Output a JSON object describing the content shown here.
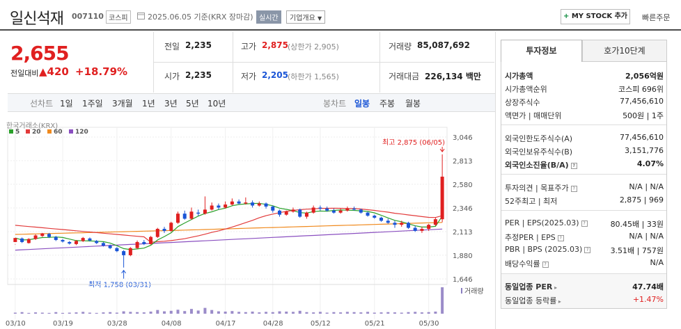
{
  "header": {
    "company_name": "일신석재",
    "code": "007110",
    "market": "코스피",
    "date_text": "2025.06.05 기준(KRX 장마감)",
    "realtime_label": "실시간",
    "company_info_label": "기업개요",
    "mystock_label": "MY STOCK 추가",
    "quick_order_label": "빠른주문"
  },
  "quote": {
    "price": "2,655",
    "change_label": "전일대비",
    "change": "▲420",
    "change_pct": "+18.79%",
    "prev_close_label": "전일",
    "prev_close": "2,235",
    "high_label": "고가",
    "high": "2,875",
    "upper_limit": "(상한가 2,905)",
    "volume_label": "거래량",
    "volume": "85,087,692",
    "open_label": "시가",
    "open": "2,235",
    "low_label": "저가",
    "low": "2,205",
    "lower_limit": "(하한가 1,565)",
    "value_label": "거래대금",
    "value": "226,134 백만"
  },
  "period_bar": {
    "line_label": "선차트",
    "periods": [
      "1일",
      "1주일",
      "3개월",
      "1년",
      "3년",
      "5년",
      "10년"
    ],
    "candle_label": "봉차트",
    "candle_types": [
      "일봉",
      "주봉",
      "월봉"
    ],
    "selected_candle": "일봉"
  },
  "right_panel": {
    "tab_info": "투자정보",
    "tab_orderbook": "호가10단계",
    "rows": [
      {
        "k": "시가총액",
        "v": "2,056억원",
        "bold": true
      },
      {
        "k": "시가총액순위",
        "v": "코스피 696위"
      },
      {
        "k": "상장주식수",
        "v": "77,456,610"
      },
      {
        "k": "액면가 | 매매단위",
        "v": "500원 | 1주"
      },
      {
        "k": "외국인한도주식수(A)",
        "v": "77,456,610"
      },
      {
        "k": "외국인보유주식수(B)",
        "v": "3,151,776"
      },
      {
        "k": "외국인소진율(B/A)",
        "v": "4.07%",
        "bold": true
      },
      {
        "k": "투자의견 | 목표주가",
        "v": "N/A | N/A"
      },
      {
        "k": "52주최고 | 최저",
        "v": "2,875 | 969"
      },
      {
        "k": "PER | EPS(2025.03)",
        "v": "80.45배 | 33원"
      },
      {
        "k": "추정PER | EPS",
        "v": "N/A | N/A"
      },
      {
        "k": "PBR | BPS (2025.03)",
        "v": "3.51배 | 757원"
      },
      {
        "k": "배당수익률",
        "v": "N/A"
      },
      {
        "k": "동일업종 PER",
        "v": "47.74배",
        "bold": true
      },
      {
        "k": "동일업종 등락률",
        "v": "+1.47%",
        "red": true
      }
    ]
  },
  "chart_data": {
    "type": "candlestick",
    "source_label": "한국거래소(KRX)",
    "legend": [
      {
        "name": "5",
        "color": "#2aa02a"
      },
      {
        "name": "20",
        "color": "#e23a3a"
      },
      {
        "name": "60",
        "color": "#f08a1e"
      },
      {
        "name": "120",
        "color": "#8a4fc0"
      }
    ],
    "y_ticks": [
      "3,046",
      "2,813",
      "2,580",
      "2,346",
      "2,113",
      "1,880",
      "1,646"
    ],
    "y_range": [
      1646,
      3046
    ],
    "x_ticks": [
      "03/10",
      "03/19",
      "03/28",
      "04/08",
      "04/17",
      "04/28",
      "05/12",
      "05/21",
      "05/30"
    ],
    "high_annotation": "최고 2,875 (06/05)",
    "low_annotation": "최저 1,758 (03/31)",
    "volume_label": "거래량",
    "up_color": "#e02020",
    "down_color": "#1a55d6",
    "candles": [
      [
        2010,
        2050,
        1990,
        1985
      ],
      [
        2045,
        2010,
        2055,
        2000
      ],
      [
        2000,
        2040,
        2048,
        1995
      ],
      [
        2040,
        2075,
        2085,
        2030
      ],
      [
        2070,
        2095,
        2100,
        2060
      ],
      [
        2090,
        2060,
        2100,
        2050
      ],
      [
        2060,
        2030,
        2070,
        2020
      ],
      [
        2030,
        2015,
        2040,
        2005
      ],
      [
        2010,
        1995,
        2020,
        1985
      ],
      [
        1990,
        2020,
        2030,
        1980
      ],
      [
        2020,
        2050,
        2060,
        2010
      ],
      [
        2045,
        2025,
        2055,
        2015
      ],
      [
        2020,
        2000,
        2030,
        1990
      ],
      [
        2000,
        1975,
        2010,
        1965
      ],
      [
        1975,
        1950,
        1985,
        1940
      ],
      [
        1950,
        1920,
        1960,
        1910
      ],
      [
        1920,
        1880,
        1930,
        1758
      ],
      [
        1880,
        1950,
        1960,
        1870
      ],
      [
        1950,
        2010,
        2025,
        1940
      ],
      [
        2010,
        1990,
        2030,
        1980
      ],
      [
        1990,
        2060,
        2070,
        1985
      ],
      [
        2060,
        2140,
        2150,
        2050
      ],
      [
        2140,
        2120,
        2160,
        2100
      ],
      [
        2120,
        2200,
        2210,
        2110
      ],
      [
        2200,
        2290,
        2310,
        2190
      ],
      [
        2290,
        2240,
        2320,
        2230
      ],
      [
        2240,
        2310,
        2350,
        2230
      ],
      [
        2300,
        2290,
        2330,
        2270
      ],
      [
        2290,
        2330,
        2460,
        2280
      ],
      [
        2330,
        2370,
        2400,
        2320
      ],
      [
        2370,
        2350,
        2390,
        2330
      ],
      [
        2350,
        2380,
        2410,
        2340
      ],
      [
        2380,
        2410,
        2440,
        2370
      ],
      [
        2410,
        2390,
        2430,
        2380
      ],
      [
        2390,
        2400,
        2450,
        2380
      ],
      [
        2400,
        2370,
        2420,
        2350
      ],
      [
        2370,
        2390,
        2410,
        2360
      ],
      [
        2390,
        2360,
        2400,
        2340
      ],
      [
        2360,
        2320,
        2370,
        2300
      ],
      [
        2320,
        2280,
        2330,
        2260
      ],
      [
        2280,
        2310,
        2320,
        2270
      ],
      [
        2310,
        2330,
        2350,
        2300
      ],
      [
        2330,
        2260,
        2340,
        2250
      ],
      [
        2260,
        2300,
        2310,
        2240
      ],
      [
        2300,
        2350,
        2370,
        2290
      ],
      [
        2350,
        2340,
        2370,
        2320
      ],
      [
        2340,
        2320,
        2360,
        2310
      ],
      [
        2320,
        2300,
        2340,
        2290
      ],
      [
        2300,
        2320,
        2340,
        2290
      ],
      [
        2320,
        2340,
        2360,
        2310
      ],
      [
        2340,
        2330,
        2360,
        2320
      ],
      [
        2330,
        2300,
        2340,
        2290
      ],
      [
        2300,
        2270,
        2310,
        2260
      ],
      [
        2270,
        2250,
        2280,
        2240
      ],
      [
        2250,
        2220,
        2260,
        2210
      ],
      [
        2220,
        2200,
        2240,
        2190
      ],
      [
        2200,
        2180,
        2220,
        2150
      ],
      [
        2180,
        2200,
        2220,
        2160
      ],
      [
        2200,
        2150,
        2210,
        2140
      ],
      [
        2150,
        2120,
        2170,
        2110
      ],
      [
        2120,
        2140,
        2160,
        2100
      ],
      [
        2140,
        2180,
        2190,
        2120
      ],
      [
        2180,
        2235,
        2250,
        2170
      ],
      [
        2235,
        2655,
        2875,
        2205
      ]
    ],
    "volumes": [
      4,
      6,
      3,
      5,
      4,
      3,
      6,
      3,
      4,
      5,
      7,
      4,
      3,
      5,
      6,
      4,
      9,
      7,
      6,
      5,
      8,
      14,
      9,
      11,
      15,
      10,
      18,
      12,
      22,
      14,
      9,
      8,
      10,
      7,
      6,
      8,
      5,
      7,
      6,
      9,
      8,
      7,
      11,
      6,
      5,
      7,
      4,
      6,
      5,
      7,
      6,
      5,
      7,
      4,
      5,
      6,
      5,
      4,
      6,
      7,
      5,
      6,
      8,
      100
    ]
  }
}
